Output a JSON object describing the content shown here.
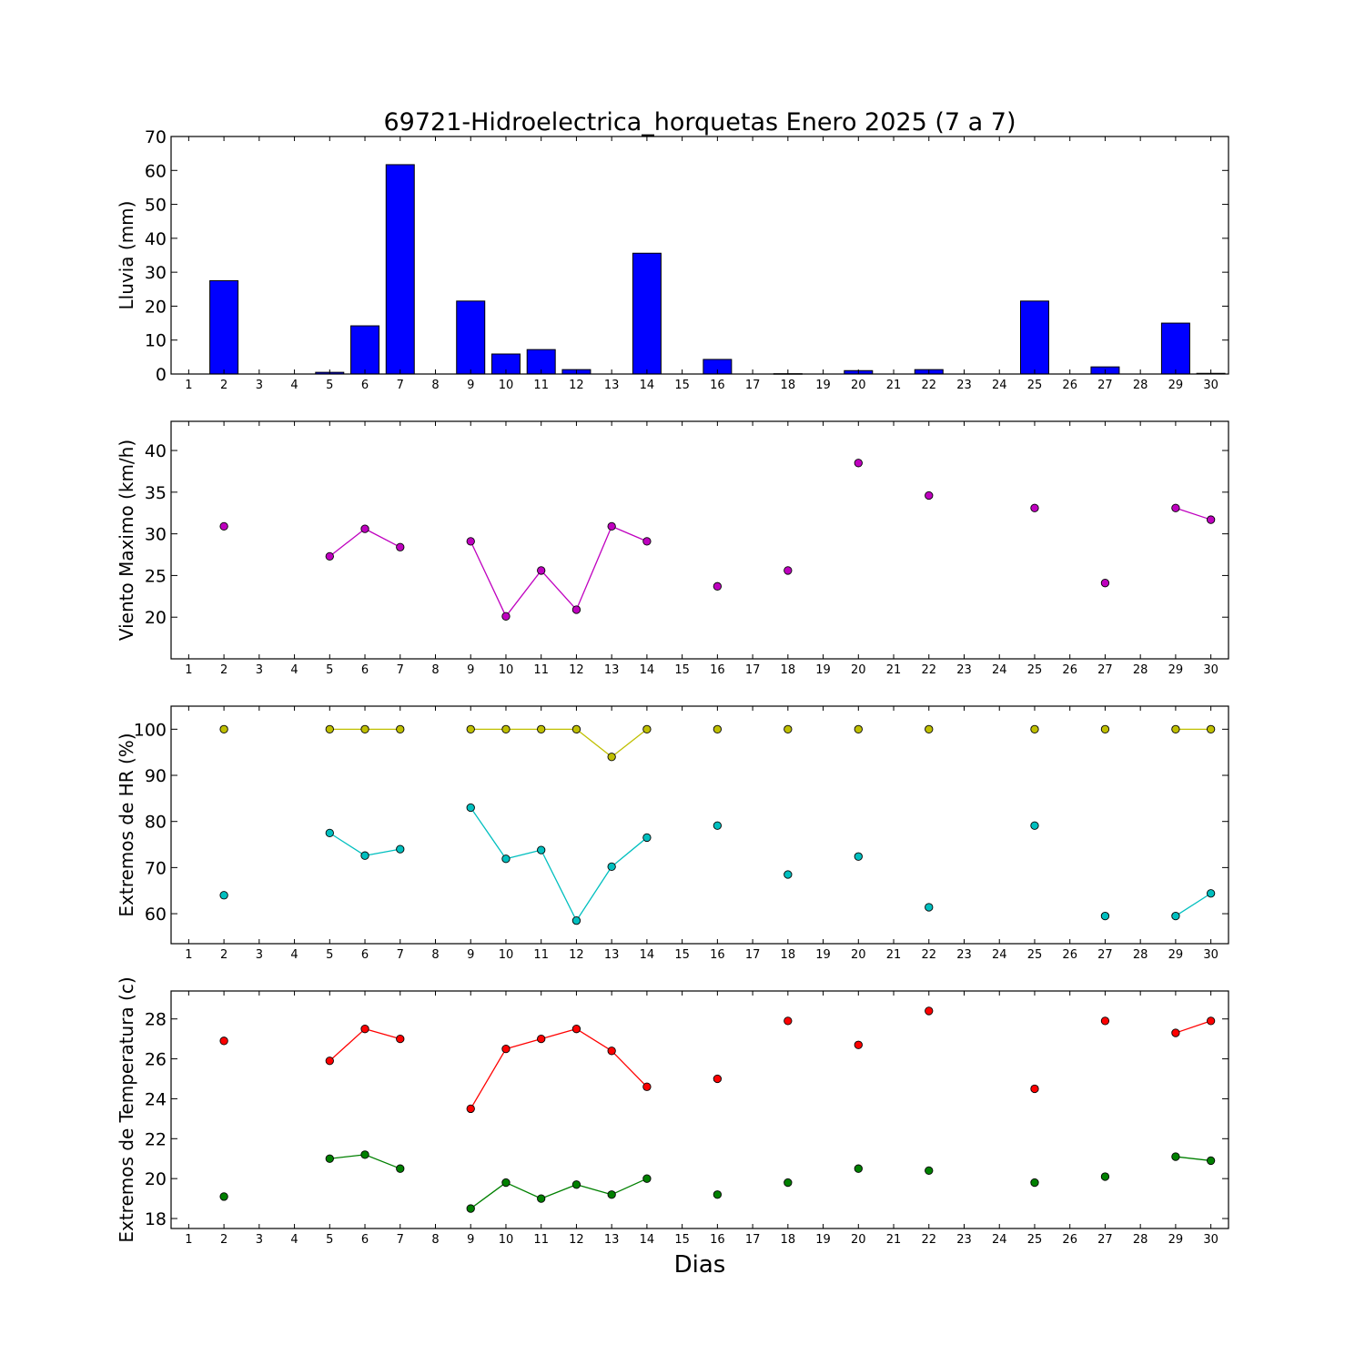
{
  "figure": {
    "title": "69721-Hidroelectrica_horquetas Enero 2025  (7 a 7)",
    "xlabel": "Dias"
  },
  "chart_data": [
    {
      "id": "rain",
      "type": "bar",
      "ylabel": "Lluvia (mm)",
      "xlim": [
        0.5,
        30.5
      ],
      "ylim": [
        0,
        70
      ],
      "yticks": [
        0,
        10,
        20,
        30,
        40,
        50,
        60,
        70
      ],
      "xticks": [
        1,
        2,
        3,
        4,
        5,
        6,
        7,
        8,
        9,
        10,
        11,
        12,
        13,
        14,
        15,
        16,
        17,
        18,
        19,
        20,
        21,
        22,
        23,
        24,
        25,
        26,
        27,
        28,
        29,
        30
      ],
      "bar_color": "#0000ff",
      "x": [
        2,
        5,
        6,
        7,
        9,
        10,
        11,
        12,
        14,
        16,
        18,
        20,
        22,
        25,
        27,
        29,
        30
      ],
      "values": [
        27.5,
        0.5,
        14.2,
        61.7,
        21.5,
        5.9,
        7.2,
        1.3,
        35.6,
        4.3,
        0.1,
        1.0,
        1.3,
        21.5,
        2.1,
        15.0,
        0.2
      ]
    },
    {
      "id": "wind",
      "type": "line",
      "ylabel": "Viento Maximo (km/h)",
      "xlim": [
        0.5,
        30.5
      ],
      "ylim": [
        15,
        43.5
      ],
      "yticks": [
        20,
        25,
        30,
        35,
        40
      ],
      "xticks": [
        1,
        2,
        3,
        4,
        5,
        6,
        7,
        8,
        9,
        10,
        11,
        12,
        13,
        14,
        15,
        16,
        17,
        18,
        19,
        20,
        21,
        22,
        23,
        24,
        25,
        26,
        27,
        28,
        29,
        30
      ],
      "x": [
        1,
        2,
        3,
        4,
        5,
        6,
        7,
        8,
        9,
        10,
        11,
        12,
        13,
        14,
        15,
        16,
        17,
        18,
        19,
        20,
        21,
        22,
        23,
        24,
        25,
        26,
        27,
        28,
        29,
        30
      ],
      "series": [
        {
          "color": "#bf00bf",
          "values": [
            null,
            30.9,
            null,
            null,
            27.3,
            30.6,
            28.4,
            null,
            29.1,
            20.1,
            25.6,
            20.9,
            30.9,
            29.1,
            null,
            23.7,
            null,
            25.6,
            null,
            38.5,
            null,
            34.6,
            null,
            null,
            33.1,
            null,
            24.1,
            null,
            33.1,
            31.7
          ]
        }
      ]
    },
    {
      "id": "humidity",
      "type": "line",
      "ylabel": "Extremos de HR (%)",
      "xlim": [
        0.5,
        30.5
      ],
      "ylim": [
        53.5,
        105
      ],
      "yticks": [
        60,
        70,
        80,
        90,
        100
      ],
      "xticks": [
        1,
        2,
        3,
        4,
        5,
        6,
        7,
        8,
        9,
        10,
        11,
        12,
        13,
        14,
        15,
        16,
        17,
        18,
        19,
        20,
        21,
        22,
        23,
        24,
        25,
        26,
        27,
        28,
        29,
        30
      ],
      "x": [
        1,
        2,
        3,
        4,
        5,
        6,
        7,
        8,
        9,
        10,
        11,
        12,
        13,
        14,
        15,
        16,
        17,
        18,
        19,
        20,
        21,
        22,
        23,
        24,
        25,
        26,
        27,
        28,
        29,
        30
      ],
      "series": [
        {
          "color": "#bfbf00",
          "values": [
            null,
            100,
            null,
            null,
            100,
            100,
            100,
            null,
            100,
            100,
            100,
            100,
            94,
            100,
            null,
            100,
            null,
            100,
            null,
            100,
            null,
            100,
            null,
            null,
            100,
            null,
            100,
            null,
            100,
            100
          ]
        },
        {
          "color": "#00bfbf",
          "values": [
            null,
            64,
            null,
            null,
            77.5,
            72.6,
            74,
            null,
            83,
            71.9,
            73.8,
            58.5,
            70.2,
            76.5,
            null,
            79.1,
            null,
            68.5,
            null,
            72.4,
            null,
            61.4,
            null,
            null,
            79.1,
            null,
            59.5,
            null,
            59.5,
            64.4
          ]
        }
      ]
    },
    {
      "id": "temperature",
      "type": "line",
      "ylabel": "Extremos de Temperatura (c)",
      "xlim": [
        0.5,
        30.5
      ],
      "ylim": [
        17.5,
        29.4
      ],
      "yticks": [
        18,
        20,
        22,
        24,
        26,
        28
      ],
      "xticks": [
        1,
        2,
        3,
        4,
        5,
        6,
        7,
        8,
        9,
        10,
        11,
        12,
        13,
        14,
        15,
        16,
        17,
        18,
        19,
        20,
        21,
        22,
        23,
        24,
        25,
        26,
        27,
        28,
        29,
        30
      ],
      "x": [
        1,
        2,
        3,
        4,
        5,
        6,
        7,
        8,
        9,
        10,
        11,
        12,
        13,
        14,
        15,
        16,
        17,
        18,
        19,
        20,
        21,
        22,
        23,
        24,
        25,
        26,
        27,
        28,
        29,
        30
      ],
      "series": [
        {
          "color": "#ff0000",
          "values": [
            null,
            26.9,
            null,
            null,
            25.9,
            27.5,
            27.0,
            null,
            23.5,
            26.5,
            27.0,
            27.5,
            26.4,
            24.6,
            null,
            25.0,
            null,
            27.9,
            null,
            26.7,
            null,
            28.4,
            null,
            null,
            24.5,
            null,
            27.9,
            null,
            27.3,
            27.9
          ]
        },
        {
          "color": "#008000",
          "values": [
            null,
            19.1,
            null,
            null,
            21.0,
            21.2,
            20.5,
            null,
            18.5,
            19.8,
            19.0,
            19.7,
            19.2,
            20.0,
            null,
            19.2,
            null,
            19.8,
            null,
            20.5,
            null,
            20.4,
            null,
            null,
            19.8,
            null,
            20.1,
            null,
            21.1,
            20.9
          ]
        }
      ]
    }
  ]
}
